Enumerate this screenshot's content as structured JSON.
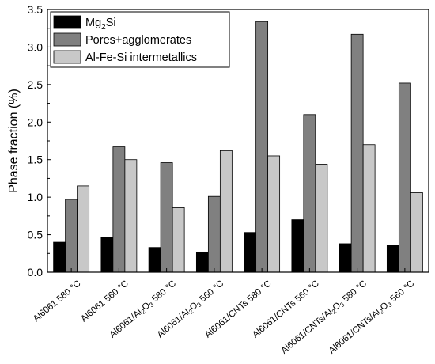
{
  "chart_data": {
    "type": "bar",
    "categories": [
      {
        "base": "Al6061 580 °C",
        "parts": [
          {
            "t": "Al6061 580 °C"
          }
        ]
      },
      {
        "base": "Al6061 560 °C",
        "parts": [
          {
            "t": "Al6061 560 °C"
          }
        ]
      },
      {
        "base": "Al6061/Al2O3 580 °C",
        "parts": [
          {
            "t": "Al6061/Al"
          },
          {
            "t": "2",
            "sub": true
          },
          {
            "t": "O"
          },
          {
            "t": "3",
            "sub": true
          },
          {
            "t": " 580 °C"
          }
        ]
      },
      {
        "base": "Al6061/Al2O3 560 °C",
        "parts": [
          {
            "t": "Al6061/Al"
          },
          {
            "t": "2",
            "sub": true
          },
          {
            "t": "O"
          },
          {
            "t": "3",
            "sub": true
          },
          {
            "t": " 560 °C"
          }
        ]
      },
      {
        "base": "Al6061/CNTs 580 °C",
        "parts": [
          {
            "t": "Al6061/CNTs 580 °C"
          }
        ]
      },
      {
        "base": "Al6061/CNTs 560 °C",
        "parts": [
          {
            "t": "Al6061/CNTs 560 °C"
          }
        ]
      },
      {
        "base": "Al6061/CNTs/Al2O3 580 °C",
        "parts": [
          {
            "t": "Al6061/CNTs/Al"
          },
          {
            "t": "2",
            "sub": true
          },
          {
            "t": "O"
          },
          {
            "t": "3",
            "sub": true
          },
          {
            "t": " 580 °C"
          }
        ]
      },
      {
        "base": "Al6061/CNTs/Al2O3 560 °C",
        "parts": [
          {
            "t": "Al6061/CNTs/Al"
          },
          {
            "t": "2",
            "sub": true
          },
          {
            "t": "O"
          },
          {
            "t": "3",
            "sub": true
          },
          {
            "t": " 560 °C"
          }
        ]
      }
    ],
    "series": [
      {
        "name": "Mg2Si",
        "name_parts": [
          {
            "t": "Mg"
          },
          {
            "t": "2",
            "sub": true
          },
          {
            "t": "Si"
          }
        ],
        "color": "#000000",
        "values": [
          0.4,
          0.46,
          0.33,
          0.27,
          0.53,
          0.7,
          0.38,
          0.36
        ]
      },
      {
        "name": "Pores+agglomerates",
        "name_parts": [
          {
            "t": "Pores+agglomerates"
          }
        ],
        "color": "#808080",
        "values": [
          0.97,
          1.67,
          1.46,
          1.01,
          3.34,
          2.1,
          3.17,
          2.52
        ]
      },
      {
        "name": "Al-Fe-Si intermetallics",
        "name_parts": [
          {
            "t": "Al-Fe-Si intermetallics"
          }
        ],
        "color": "#c8c8c8",
        "values": [
          1.15,
          1.5,
          0.86,
          1.62,
          1.55,
          1.44,
          1.7,
          1.06
        ]
      }
    ],
    "ylabel": "Phase fraction (%)",
    "xlabel": "",
    "ylim": [
      0,
      3.5
    ],
    "yticks": [
      "0.0",
      "0.5",
      "1.0",
      "1.5",
      "2.0",
      "2.5",
      "3.0",
      "3.5"
    ],
    "legend_position": "top-left",
    "grid": false
  }
}
